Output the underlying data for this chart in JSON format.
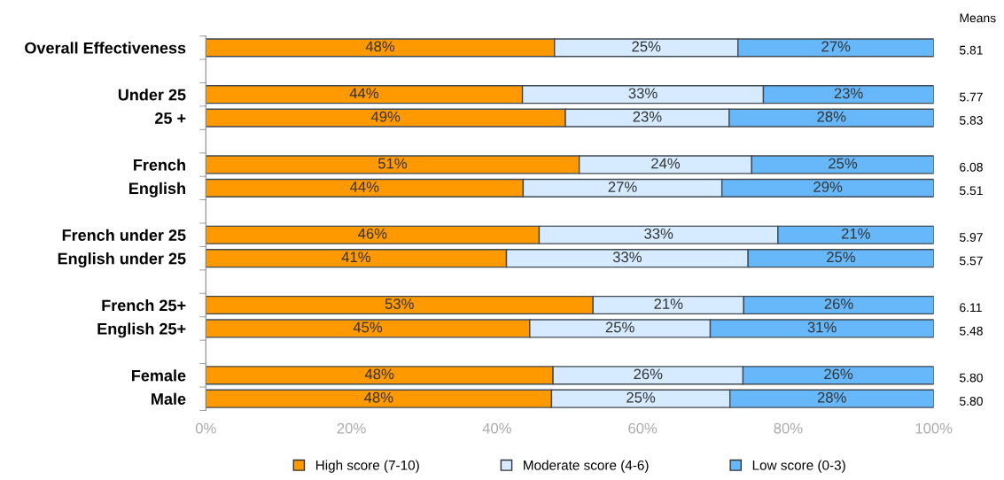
{
  "chart_data": {
    "type": "bar",
    "orientation": "horizontal",
    "stacked": true,
    "categories": [
      "Overall Effectiveness",
      null,
      "Under 25",
      "25 +",
      null,
      "French",
      "English",
      null,
      "French under 25",
      "English under 25",
      null,
      "French 25+",
      "English 25+",
      null,
      "Female",
      "Male"
    ],
    "series": [
      {
        "name": "High score (7-10)",
        "color": "#ff9900",
        "values": [
          47.9,
          null,
          43.5,
          49.4,
          null,
          51.3,
          43.6,
          null,
          45.8,
          41.3,
          null,
          53.2,
          44.5,
          null,
          47.7,
          47.5
        ],
        "value_labels": [
          "48%",
          null,
          "44%",
          "49%",
          null,
          "51%",
          "44%",
          null,
          "46%",
          "41%",
          null,
          "53%",
          "45%",
          null,
          "48%",
          "48%"
        ]
      },
      {
        "name": "Moderate score (4-6)",
        "color": "#d6ebff",
        "values": [
          25.2,
          null,
          33.1,
          22.5,
          null,
          23.7,
          27.3,
          null,
          32.8,
          33.2,
          null,
          20.7,
          24.8,
          null,
          26.1,
          24.5
        ],
        "value_labels": [
          "25%",
          null,
          "33%",
          "23%",
          null,
          "24%",
          "27%",
          null,
          "33%",
          "33%",
          null,
          "21%",
          "25%",
          null,
          "26%",
          "25%"
        ]
      },
      {
        "name": "Low score (0-3)",
        "color": "#66b8fa",
        "values": [
          26.9,
          null,
          23.4,
          28.1,
          null,
          25.0,
          29.1,
          null,
          21.4,
          25.5,
          null,
          26.1,
          30.7,
          null,
          26.2,
          28.0
        ],
        "value_labels": [
          "27%",
          null,
          "23%",
          "28%",
          null,
          "25%",
          "29%",
          null,
          "21%",
          "25%",
          null,
          "26%",
          "31%",
          null,
          "26%",
          "28%"
        ]
      }
    ],
    "xlim": [
      0,
      100
    ],
    "xticks": [
      {
        "value": 0,
        "label": "0%"
      },
      {
        "value": 20,
        "label": "20%"
      },
      {
        "value": 40,
        "label": "40%"
      },
      {
        "value": 60,
        "label": "60%"
      },
      {
        "value": 80,
        "label": "80%"
      },
      {
        "value": 100,
        "label": "100%"
      }
    ],
    "legend": "bottom",
    "grid": false,
    "annotations": [
      "Means",
      "5.81",
      "5.77",
      "5.83",
      "6.08",
      "5.51",
      "5.97",
      "5.57",
      "6.11",
      "5.48",
      "5.80",
      "5.80"
    ]
  }
}
